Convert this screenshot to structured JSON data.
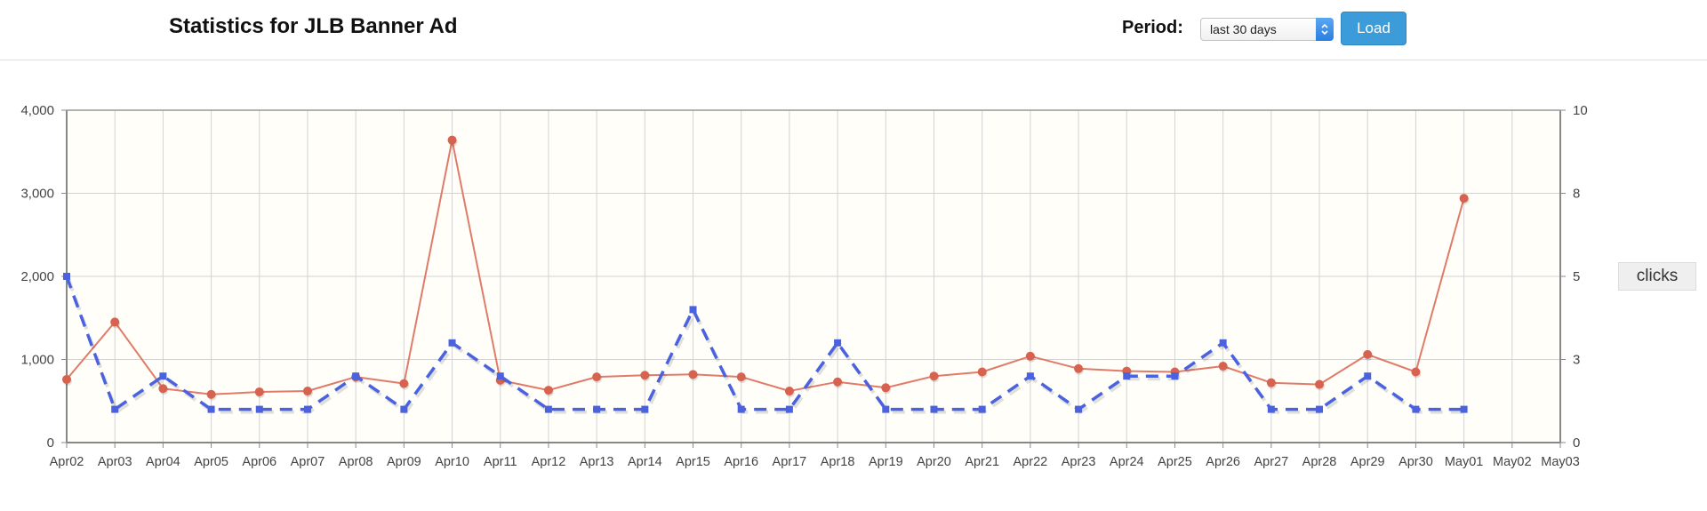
{
  "header": {
    "title": "Statistics for JLB Banner Ad",
    "period_label": "Period:",
    "period_value": "last 30 days",
    "load_label": "Load"
  },
  "colors": {
    "impressions_line": "#e07b6a",
    "impressions_point": "#d7624f",
    "clicks_line": "#4b62e0",
    "plot_background": "#fffef8",
    "grid": "#d3d3d3"
  },
  "legend": {
    "clicks_label": "clicks"
  },
  "chart_data": {
    "type": "line",
    "categories": [
      "Apr02",
      "Apr03",
      "Apr04",
      "Apr05",
      "Apr06",
      "Apr07",
      "Apr08",
      "Apr09",
      "Apr10",
      "Apr11",
      "Apr12",
      "Apr13",
      "Apr14",
      "Apr15",
      "Apr16",
      "Apr17",
      "Apr18",
      "Apr19",
      "Apr20",
      "Apr21",
      "Apr22",
      "Apr23",
      "Apr24",
      "Apr25",
      "Apr26",
      "Apr27",
      "Apr28",
      "Apr29",
      "Apr30",
      "May01",
      "May02",
      "May03"
    ],
    "series": [
      {
        "axis": "left",
        "style": "solid",
        "values": [
          760,
          1450,
          650,
          580,
          610,
          620,
          790,
          710,
          3640,
          750,
          630,
          790,
          810,
          820,
          790,
          620,
          730,
          660,
          800,
          850,
          1040,
          890,
          860,
          850,
          920,
          720,
          700,
          1060,
          850,
          2940,
          null,
          null
        ]
      },
      {
        "name": "clicks",
        "axis": "right",
        "style": "dashed",
        "values": [
          5,
          1,
          2,
          1,
          1,
          1,
          2,
          1,
          3,
          2,
          1,
          1,
          1,
          4,
          1,
          1,
          3,
          1,
          1,
          1,
          2,
          1,
          2,
          2,
          3,
          1,
          1,
          2,
          1,
          1,
          null,
          null
        ]
      }
    ],
    "y_left": {
      "min": 0,
      "max": 4000,
      "ticks": [
        "0",
        "1,000",
        "2,000",
        "3,000",
        "4,000"
      ]
    },
    "y_right": {
      "min": 0,
      "max": 10,
      "ticks": [
        "0",
        "3",
        "5",
        "8",
        "10"
      ]
    },
    "grid": true,
    "legend_position": "right"
  }
}
